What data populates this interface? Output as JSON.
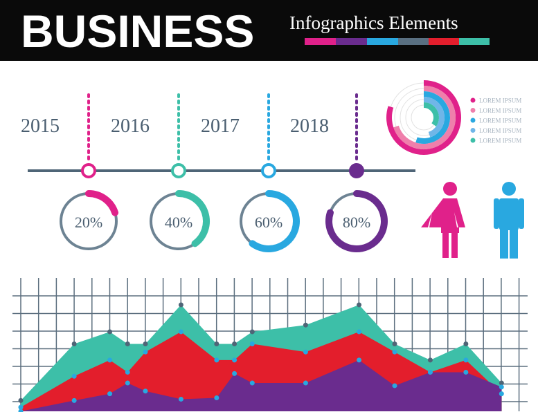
{
  "header": {
    "title": "BUSINESS",
    "subtitle": "Infographics Elements"
  },
  "chart_data": [
    {
      "type": "gauge",
      "categories": [
        "2015",
        "2016",
        "2017",
        "2018"
      ],
      "values": [
        20,
        40,
        60,
        80
      ],
      "value_labels": [
        "20%",
        "40%",
        "60%",
        "80%"
      ],
      "colors": [
        "#e0218a",
        "#3dbfa8",
        "#29a8e0",
        "#6a2c8e"
      ],
      "ylim": [
        0,
        100
      ]
    },
    {
      "type": "radial",
      "ylim": [
        0,
        100
      ],
      "series": [
        {
          "name": "LOREM IPSUM",
          "color": "#e0218a",
          "values": [
            80
          ]
        },
        {
          "name": "LOREM IPSUM",
          "color": "#ef7fab",
          "values": [
            70
          ]
        },
        {
          "name": "LOREM IPSUM",
          "color": "#29a8e0",
          "values": [
            55
          ]
        },
        {
          "name": "LOREM IPSUM",
          "color": "#6fb6e8",
          "values": [
            45
          ]
        },
        {
          "name": "LOREM IPSUM",
          "color": "#3dbfa8",
          "values": [
            35
          ]
        }
      ]
    },
    {
      "type": "area",
      "x": [
        0,
        3,
        5,
        6,
        7,
        9,
        11,
        12,
        13,
        16,
        19,
        21,
        23,
        25,
        27
      ],
      "xlim": [
        0,
        28
      ],
      "ylim": [
        0,
        100
      ],
      "series": [
        {
          "color": "#3dbfa8",
          "values": [
            8,
            50,
            59,
            50,
            50,
            79,
            50,
            50,
            59,
            64,
            79,
            50,
            38,
            50,
            21
          ]
        },
        {
          "color": "#e31e2c",
          "values": [
            3,
            26,
            38,
            29,
            44,
            59,
            38,
            38,
            50,
            44,
            59,
            44,
            29,
            38,
            13
          ]
        },
        {
          "color": "#6a2c8e",
          "values": [
            0,
            8,
            13,
            21,
            15,
            9,
            10,
            28,
            21,
            21,
            38,
            19,
            29,
            29,
            18
          ]
        }
      ]
    }
  ]
}
